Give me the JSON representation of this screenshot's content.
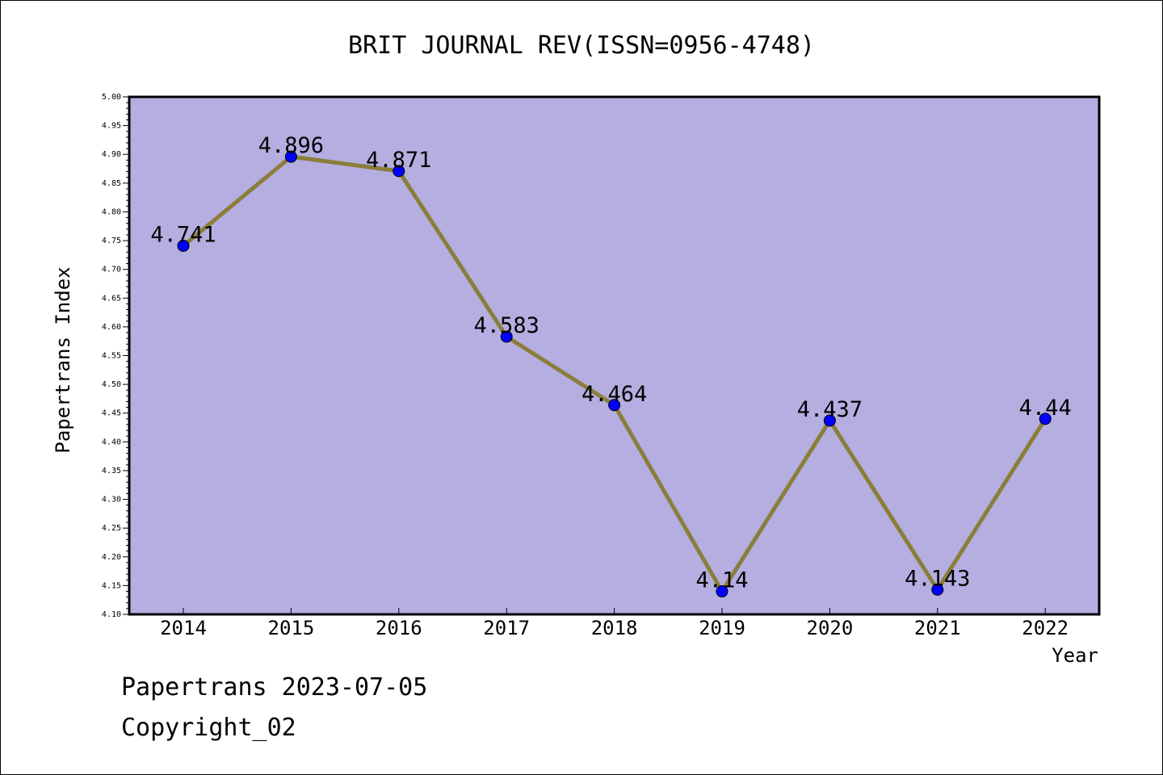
{
  "chart_data": {
    "type": "line",
    "title": "BRIT JOURNAL REV(ISSN=0956-4748)",
    "xlabel": "Year",
    "ylabel": "Papertrans Index",
    "categories": [
      "2014",
      "2015",
      "2016",
      "2017",
      "2018",
      "2019",
      "2020",
      "2021",
      "2022"
    ],
    "series": [
      {
        "values": [
          4.741,
          4.896,
          4.871,
          4.583,
          4.464,
          4.14,
          4.437,
          4.143,
          4.44
        ],
        "labels": [
          "4.741",
          "4.896",
          "4.871",
          "4.583",
          "4.464",
          "4.14",
          "4.437",
          "4.143",
          "4.44"
        ]
      }
    ],
    "ylim": [
      4.1,
      5.0
    ],
    "yticks": [
      "4.10",
      "4.15",
      "4.20",
      "4.25",
      "4.30",
      "4.35",
      "4.40",
      "4.45",
      "4.50",
      "4.55",
      "4.60",
      "4.65",
      "4.70",
      "4.75",
      "4.80",
      "4.85",
      "4.90",
      "4.95",
      "5.00"
    ],
    "grid": false,
    "colors": {
      "plot_background": "#b5aee1",
      "line": "#8b7d3a",
      "marker": "#0000ff"
    }
  },
  "footer": {
    "line1": "Papertrans 2023-07-05",
    "line2": "Copyright_02"
  }
}
